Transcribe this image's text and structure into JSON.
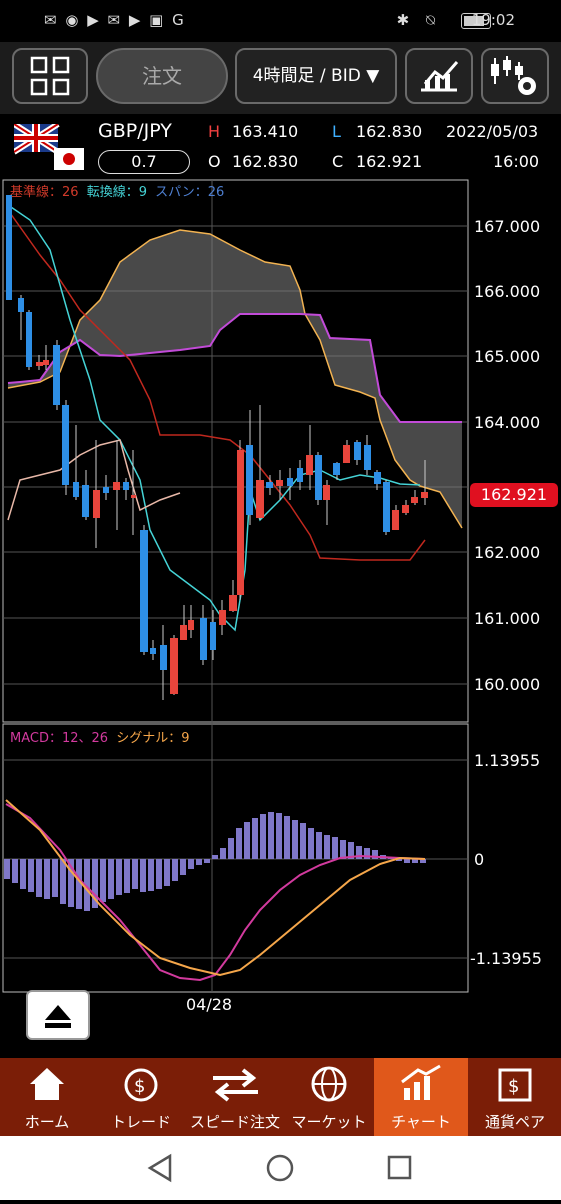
{
  "status_bar": {
    "time": "19:02",
    "left_icons": [
      "gmail-icon",
      "wifi-icon",
      "youtube-icon",
      "mail-icon",
      "youtube-icon",
      "app-icon",
      "app-icon"
    ],
    "right_icons": [
      "bluetooth-icon",
      "mute-icon",
      "battery-icon"
    ]
  },
  "toolbar": {
    "order_label": "注文",
    "timeframe_label": "4時間足 / BID"
  },
  "info": {
    "pair": "GBP/JPY",
    "lot": "0.7",
    "h_label": "H",
    "h_value": "163.410",
    "o_label": "O",
    "o_value": "162.830",
    "l_label": "L",
    "l_value": "162.830",
    "c_label": "C",
    "c_value": "162.921",
    "date": "2022/05/03",
    "time": "16:00"
  },
  "chart": {
    "ichimoku_legend": {
      "kijun": "基準線：26",
      "tenkan": "転換線：9",
      "span": "スパン：26"
    },
    "macd_legend": {
      "macd": "MACD：12、26",
      "signal": "シグナル：9"
    },
    "price_labels": [
      "167.000",
      "166.000",
      "165.000",
      "164.000",
      "162.000",
      "161.000",
      "160.000"
    ],
    "current_price": "162.921",
    "macd_labels": [
      "1.13955",
      "0",
      "-1.13955"
    ],
    "date_label": "04/28"
  },
  "chart_data": {
    "type": "candlestick",
    "price_axis": {
      "ticks": [
        167.0,
        166.0,
        165.0,
        164.0,
        163.0,
        162.0,
        161.0,
        160.0
      ],
      "range": [
        159.4,
        167.5
      ]
    },
    "current_price": 162.921,
    "macd_axis": {
      "ticks": [
        1.13955,
        0,
        -1.13955
      ]
    },
    "x_label": "04/28"
  },
  "bottom_nav": [
    {
      "label": "ホーム",
      "icon": "home-icon"
    },
    {
      "label": "トレード",
      "icon": "trade-icon"
    },
    {
      "label": "スピード注文",
      "icon": "speed-order-icon"
    },
    {
      "label": "マーケット",
      "icon": "globe-icon"
    },
    {
      "label": "チャート",
      "icon": "chart-icon"
    },
    {
      "label": "通貨ペア",
      "icon": "currency-pair-icon"
    }
  ],
  "colors": {
    "up": "#e8453c",
    "down": "#2e8fe6",
    "active_nav": "#e0581b",
    "nav_bg": "#7b1e07"
  }
}
